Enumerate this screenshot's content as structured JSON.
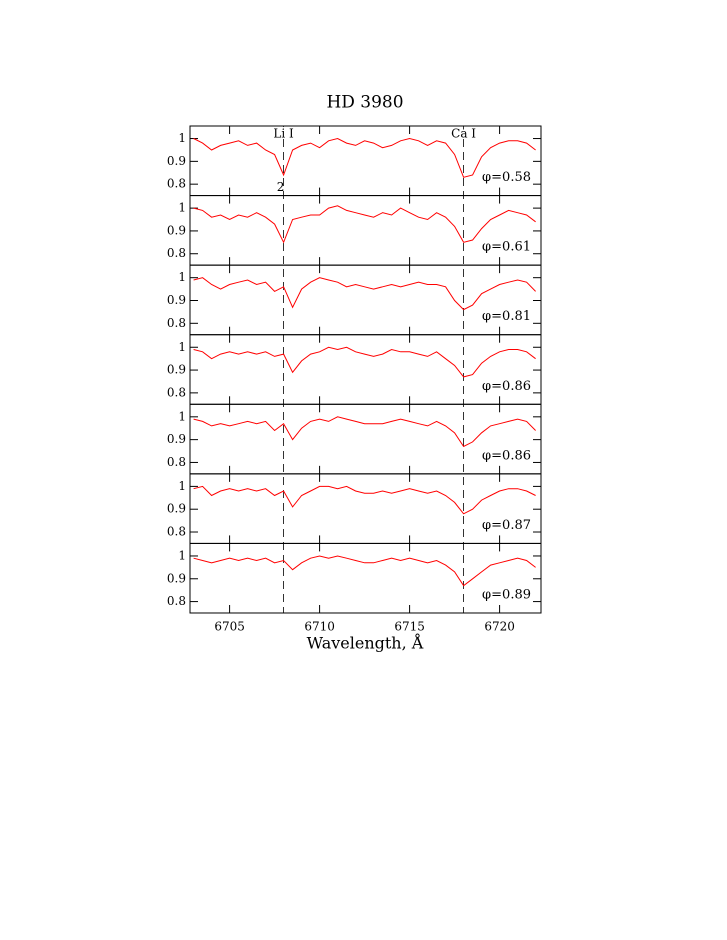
{
  "chart_data": [
    {
      "type": "line",
      "title": "HD 3980",
      "annotation": "φ=0.58",
      "color": "#ff0000",
      "annotations": [
        {
          "text": "Li I",
          "x": 6708,
          "dashed": true
        },
        {
          "text": "Ca I",
          "x": 6718,
          "dashed": true
        },
        {
          "text": "2",
          "x": 6708,
          "dashed": false
        }
      ],
      "x": [
        6703,
        6703.5,
        6704,
        6704.5,
        6705,
        6705.5,
        6706,
        6706.5,
        6707,
        6707.5,
        6708,
        6708.5,
        6709,
        6709.5,
        6710,
        6710.5,
        6711,
        6711.5,
        6712,
        6712.5,
        6713,
        6713.5,
        6714,
        6714.5,
        6715,
        6715.5,
        6716,
        6716.5,
        6717,
        6717.5,
        6718,
        6718.5,
        6719,
        6719.5,
        6720,
        6720.5,
        6721,
        6721.5,
        6722
      ],
      "values": [
        1.0,
        0.98,
        0.95,
        0.97,
        0.98,
        0.99,
        0.97,
        0.98,
        0.95,
        0.93,
        0.84,
        0.95,
        0.97,
        0.98,
        0.96,
        0.99,
        1.0,
        0.98,
        0.97,
        0.99,
        0.98,
        0.96,
        0.97,
        0.99,
        1.0,
        0.99,
        0.97,
        0.99,
        0.98,
        0.93,
        0.83,
        0.84,
        0.92,
        0.96,
        0.98,
        0.99,
        0.99,
        0.98,
        0.95
      ],
      "xlim": [
        6702.8,
        6722.3
      ],
      "xticks": [
        6705,
        6710,
        6715,
        6720
      ],
      "ylim": [
        0.75,
        1.055
      ],
      "yticks": [
        0.8,
        0.9,
        1
      ]
    },
    {
      "type": "line",
      "annotation": "φ=0.61",
      "color": "#ff0000",
      "x": [
        6703,
        6703.5,
        6704,
        6704.5,
        6705,
        6705.5,
        6706,
        6706.5,
        6707,
        6707.5,
        6708,
        6708.5,
        6709,
        6709.5,
        6710,
        6710.5,
        6711,
        6711.5,
        6712,
        6712.5,
        6713,
        6713.5,
        6714,
        6714.5,
        6715,
        6715.5,
        6716,
        6716.5,
        6717,
        6717.5,
        6718,
        6718.5,
        6719,
        6719.5,
        6720,
        6720.5,
        6721,
        6721.5,
        6722
      ],
      "values": [
        1.0,
        0.99,
        0.96,
        0.97,
        0.95,
        0.97,
        0.96,
        0.98,
        0.96,
        0.93,
        0.85,
        0.95,
        0.96,
        0.97,
        0.97,
        1.0,
        1.01,
        0.99,
        0.98,
        0.97,
        0.96,
        0.98,
        0.97,
        1.0,
        0.98,
        0.96,
        0.95,
        0.98,
        0.96,
        0.92,
        0.85,
        0.86,
        0.91,
        0.95,
        0.97,
        0.99,
        0.98,
        0.97,
        0.94
      ],
      "xlim": [
        6702.8,
        6722.3
      ],
      "xticks": [
        6705,
        6710,
        6715,
        6720
      ],
      "ylim": [
        0.75,
        1.055
      ],
      "yticks": [
        0.8,
        0.9,
        1
      ]
    },
    {
      "type": "line",
      "annotation": "φ=0.81",
      "color": "#ff0000",
      "x": [
        6703,
        6703.5,
        6704,
        6704.5,
        6705,
        6705.5,
        6706,
        6706.5,
        6707,
        6707.5,
        6708,
        6708.5,
        6709,
        6709.5,
        6710,
        6710.5,
        6711,
        6711.5,
        6712,
        6712.5,
        6713,
        6713.5,
        6714,
        6714.5,
        6715,
        6715.5,
        6716,
        6716.5,
        6717,
        6717.5,
        6718,
        6718.5,
        6719,
        6719.5,
        6720,
        6720.5,
        6721,
        6721.5,
        6722
      ],
      "values": [
        0.99,
        1.0,
        0.97,
        0.95,
        0.97,
        0.98,
        0.99,
        0.97,
        0.98,
        0.94,
        0.96,
        0.87,
        0.95,
        0.98,
        1.0,
        0.99,
        0.98,
        0.96,
        0.97,
        0.96,
        0.95,
        0.96,
        0.97,
        0.96,
        0.97,
        0.98,
        0.97,
        0.97,
        0.96,
        0.9,
        0.86,
        0.88,
        0.93,
        0.95,
        0.97,
        0.98,
        0.99,
        0.98,
        0.94
      ],
      "xlim": [
        6702.8,
        6722.3
      ],
      "xticks": [
        6705,
        6710,
        6715,
        6720
      ],
      "ylim": [
        0.75,
        1.055
      ],
      "yticks": [
        0.8,
        0.9,
        1
      ]
    },
    {
      "type": "line",
      "annotation": "φ=0.86",
      "color": "#ff0000",
      "x": [
        6703,
        6703.5,
        6704,
        6704.5,
        6705,
        6705.5,
        6706,
        6706.5,
        6707,
        6707.5,
        6708,
        6708.5,
        6709,
        6709.5,
        6710,
        6710.5,
        6711,
        6711.5,
        6712,
        6712.5,
        6713,
        6713.5,
        6714,
        6714.5,
        6715,
        6715.5,
        6716,
        6716.5,
        6717,
        6717.5,
        6718,
        6718.5,
        6719,
        6719.5,
        6720,
        6720.5,
        6721,
        6721.5,
        6722
      ],
      "values": [
        0.99,
        0.98,
        0.95,
        0.97,
        0.98,
        0.97,
        0.98,
        0.97,
        0.98,
        0.96,
        0.97,
        0.89,
        0.94,
        0.97,
        0.98,
        1.0,
        0.99,
        1.0,
        0.98,
        0.97,
        0.96,
        0.97,
        0.99,
        0.98,
        0.98,
        0.97,
        0.96,
        0.98,
        0.95,
        0.92,
        0.87,
        0.88,
        0.93,
        0.96,
        0.98,
        0.99,
        0.99,
        0.98,
        0.95
      ],
      "xlim": [
        6702.8,
        6722.3
      ],
      "xticks": [
        6705,
        6710,
        6715,
        6720
      ],
      "ylim": [
        0.75,
        1.055
      ],
      "yticks": [
        0.8,
        0.9,
        1
      ]
    },
    {
      "type": "line",
      "annotation": "φ=0.86",
      "color": "#ff0000",
      "x": [
        6703,
        6703.5,
        6704,
        6704.5,
        6705,
        6705.5,
        6706,
        6706.5,
        6707,
        6707.5,
        6708,
        6708.5,
        6709,
        6709.5,
        6710,
        6710.5,
        6711,
        6711.5,
        6712,
        6712.5,
        6713,
        6713.5,
        6714,
        6714.5,
        6715,
        6715.5,
        6716,
        6716.5,
        6717,
        6717.5,
        6718,
        6718.5,
        6719,
        6719.5,
        6720,
        6720.5,
        6721,
        6721.5,
        6722
      ],
      "values": [
        0.99,
        0.98,
        0.96,
        0.97,
        0.96,
        0.97,
        0.98,
        0.97,
        0.98,
        0.94,
        0.97,
        0.9,
        0.95,
        0.98,
        0.99,
        0.98,
        1.0,
        0.99,
        0.98,
        0.97,
        0.97,
        0.97,
        0.98,
        0.99,
        0.98,
        0.97,
        0.96,
        0.98,
        0.96,
        0.93,
        0.87,
        0.89,
        0.93,
        0.96,
        0.97,
        0.98,
        0.99,
        0.98,
        0.94
      ],
      "xlim": [
        6702.8,
        6722.3
      ],
      "xticks": [
        6705,
        6710,
        6715,
        6720
      ],
      "ylim": [
        0.75,
        1.055
      ],
      "yticks": [
        0.8,
        0.9,
        1
      ]
    },
    {
      "type": "line",
      "annotation": "φ=0.87",
      "color": "#ff0000",
      "x": [
        6703,
        6703.5,
        6704,
        6704.5,
        6705,
        6705.5,
        6706,
        6706.5,
        6707,
        6707.5,
        6708,
        6708.5,
        6709,
        6709.5,
        6710,
        6710.5,
        6711,
        6711.5,
        6712,
        6712.5,
        6713,
        6713.5,
        6714,
        6714.5,
        6715,
        6715.5,
        6716,
        6716.5,
        6717,
        6717.5,
        6718,
        6718.5,
        6719,
        6719.5,
        6720,
        6720.5,
        6721,
        6721.5,
        6722
      ],
      "values": [
        0.99,
        1.0,
        0.96,
        0.98,
        0.99,
        0.98,
        0.99,
        0.98,
        0.99,
        0.96,
        0.98,
        0.91,
        0.96,
        0.98,
        1.0,
        1.0,
        0.99,
        1.0,
        0.98,
        0.97,
        0.97,
        0.98,
        0.97,
        0.98,
        0.99,
        0.98,
        0.97,
        0.98,
        0.96,
        0.93,
        0.88,
        0.9,
        0.94,
        0.96,
        0.98,
        0.99,
        0.99,
        0.98,
        0.96
      ],
      "xlim": [
        6702.8,
        6722.3
      ],
      "xticks": [
        6705,
        6710,
        6715,
        6720
      ],
      "ylim": [
        0.75,
        1.055
      ],
      "yticks": [
        0.8,
        0.9,
        1
      ]
    },
    {
      "type": "line",
      "annotation": "φ=0.89",
      "color": "#ff0000",
      "x_label": "Wavelength, Å",
      "x": [
        6703,
        6703.5,
        6704,
        6704.5,
        6705,
        6705.5,
        6706,
        6706.5,
        6707,
        6707.5,
        6708,
        6708.5,
        6709,
        6709.5,
        6710,
        6710.5,
        6711,
        6711.5,
        6712,
        6712.5,
        6713,
        6713.5,
        6714,
        6714.5,
        6715,
        6715.5,
        6716,
        6716.5,
        6717,
        6717.5,
        6718,
        6718.5,
        6719,
        6719.5,
        6720,
        6720.5,
        6721,
        6721.5,
        6722
      ],
      "values": [
        0.99,
        0.98,
        0.97,
        0.98,
        0.99,
        0.98,
        0.99,
        0.98,
        0.99,
        0.97,
        0.98,
        0.94,
        0.97,
        0.99,
        1.0,
        0.99,
        1.0,
        0.99,
        0.98,
        0.97,
        0.97,
        0.98,
        0.99,
        0.98,
        0.99,
        0.98,
        0.97,
        0.98,
        0.96,
        0.93,
        0.87,
        0.9,
        0.93,
        0.96,
        0.97,
        0.98,
        0.99,
        0.98,
        0.95
      ],
      "xlim": [
        6702.8,
        6722.3
      ],
      "xticks": [
        6705,
        6710,
        6715,
        6720
      ],
      "ylim": [
        0.75,
        1.055
      ],
      "yticks": [
        0.8,
        0.9,
        1
      ]
    }
  ]
}
